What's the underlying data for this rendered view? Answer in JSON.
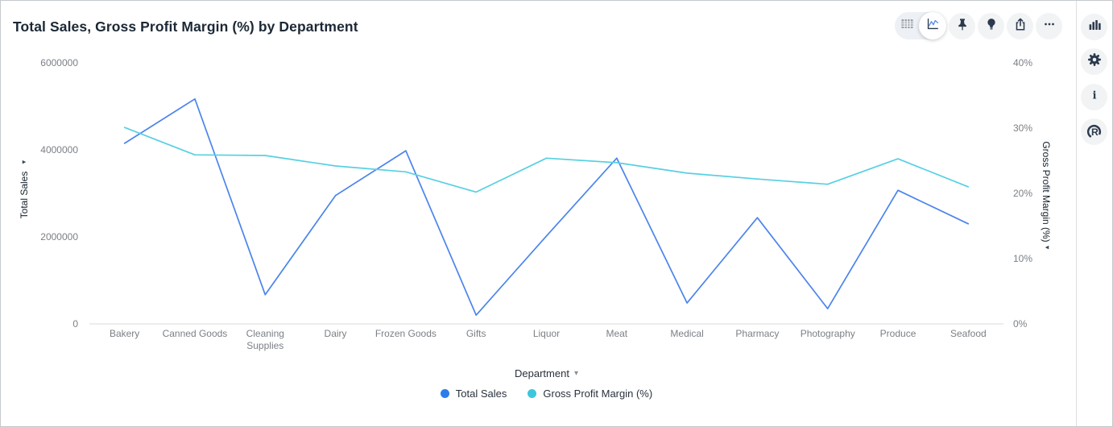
{
  "header": {
    "title": "Total Sales, Gross Profit Margin (%) by Department"
  },
  "toolbar": {
    "selected_view": "chart",
    "icons": {
      "table_view": "table-view-icon",
      "chart_view": "line-chart-view-icon",
      "pin": "pin-icon",
      "insights": "lightbulb-icon",
      "export": "export-icon",
      "more": "more-options-icon"
    }
  },
  "side_toolbar": {
    "icons": {
      "chart_type": "bar-chart-icon",
      "settings": "gear-icon",
      "info": "info-icon",
      "brand": "r-logo-icon"
    }
  },
  "glyphs": {
    "left_axis_arrow": "▸",
    "right_axis_arrow": "◂",
    "dropdown_arrow": "▾",
    "info_glyph": "i",
    "brand_glyph": "R"
  },
  "chart_data": {
    "type": "line",
    "title": "Total Sales, Gross Profit Margin (%) by Department",
    "categories": [
      "Bakery",
      "Canned Goods",
      "Cleaning Supplies",
      "Dairy",
      "Frozen Goods",
      "Gifts",
      "Liquor",
      "Meat",
      "Medical",
      "Pharmacy",
      "Photography",
      "Produce",
      "Seafood"
    ],
    "series": [
      {
        "name": "Total Sales",
        "axis": "left",
        "color": "#4b84ec",
        "values": [
          4150000,
          5170000,
          670000,
          2950000,
          3980000,
          200000,
          2020000,
          3810000,
          480000,
          2440000,
          350000,
          3070000,
          2300000
        ]
      },
      {
        "name": "Gross Profit Margin (%)",
        "axis": "right",
        "color": "#57d0e2",
        "values": [
          30.1,
          25.9,
          25.8,
          24.2,
          23.3,
          20.2,
          25.4,
          24.7,
          23.1,
          22.2,
          21.4,
          25.3,
          21.0
        ]
      }
    ],
    "left_axis": {
      "label": "Total Sales",
      "min": 0,
      "max": 6000000,
      "ticks": [
        {
          "label": "6000000",
          "value": 6000000
        },
        {
          "label": "4000000",
          "value": 4000000
        },
        {
          "label": "2000000",
          "value": 2000000
        },
        {
          "label": "0",
          "value": 0
        }
      ]
    },
    "right_axis": {
      "label": "Gross Profit Margin (%)",
      "min": 0,
      "max": 40,
      "ticks": [
        {
          "label": "40%",
          "value": 40
        },
        {
          "label": "30%",
          "value": 30
        },
        {
          "label": "20%",
          "value": 20
        },
        {
          "label": "10%",
          "value": 10
        },
        {
          "label": "0%",
          "value": 0
        }
      ]
    },
    "x_axis": {
      "label": "Department"
    },
    "legend": [
      {
        "label": "Total Sales",
        "color": "#2e7cea"
      },
      {
        "label": "Gross Profit Margin (%)",
        "color": "#3cc7db"
      }
    ],
    "grid": false,
    "legend_position": "bottom",
    "axis_line_color": "#d8dadd"
  }
}
